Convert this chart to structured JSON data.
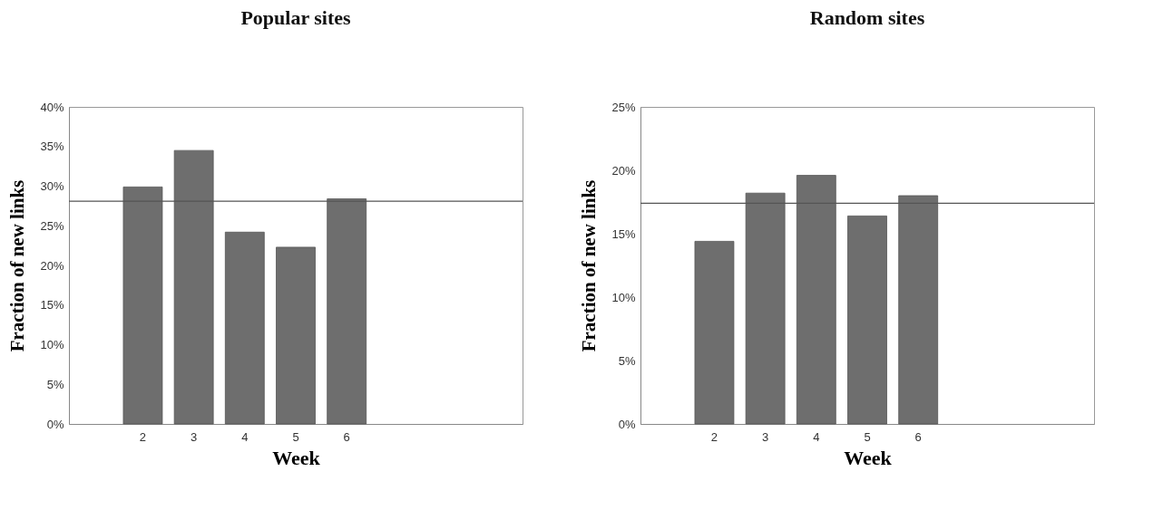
{
  "chart_data": [
    {
      "type": "bar",
      "title": "Popular sites",
      "xlabel": "Week",
      "ylabel": "Fraction of new links",
      "categories": [
        null,
        "2",
        "3",
        "4",
        "5",
        "6",
        null,
        null,
        null
      ],
      "values": [
        null,
        29.9,
        34.5,
        24.2,
        22.3,
        28.4,
        null,
        null,
        null
      ],
      "color": "#6e6e6e",
      "ylim": [
        0,
        40
      ],
      "yticks": [
        {
          "value": 0,
          "label": "0%"
        },
        {
          "value": 5,
          "label": "5%"
        },
        {
          "value": 10,
          "label": "10%"
        },
        {
          "value": 15,
          "label": "15%"
        },
        {
          "value": 20,
          "label": "20%"
        },
        {
          "value": 25,
          "label": "25%"
        },
        {
          "value": 30,
          "label": "30%"
        },
        {
          "value": 35,
          "label": "35%"
        },
        {
          "value": 40,
          "label": "40%"
        }
      ],
      "ref_lines": [
        {
          "axis": "y",
          "value": 28.1,
          "color": "#555555"
        }
      ]
    },
    {
      "type": "bar",
      "title": "Random sites",
      "xlabel": "Week",
      "ylabel": "Fraction of new links",
      "categories": [
        null,
        "2",
        "3",
        "4",
        "5",
        "6",
        null,
        null,
        null
      ],
      "values": [
        null,
        14.4,
        18.2,
        19.6,
        16.4,
        18.0,
        null,
        null,
        null
      ],
      "color": "#6e6e6e",
      "ylim": [
        0,
        25
      ],
      "yticks": [
        {
          "value": 0,
          "label": "0%"
        },
        {
          "value": 5,
          "label": "5%"
        },
        {
          "value": 10,
          "label": "10%"
        },
        {
          "value": 15,
          "label": "15%"
        },
        {
          "value": 20,
          "label": "20%"
        },
        {
          "value": 25,
          "label": "25%"
        }
      ],
      "ref_lines": [
        {
          "axis": "y",
          "value": 17.4,
          "color": "#555555"
        }
      ]
    }
  ]
}
